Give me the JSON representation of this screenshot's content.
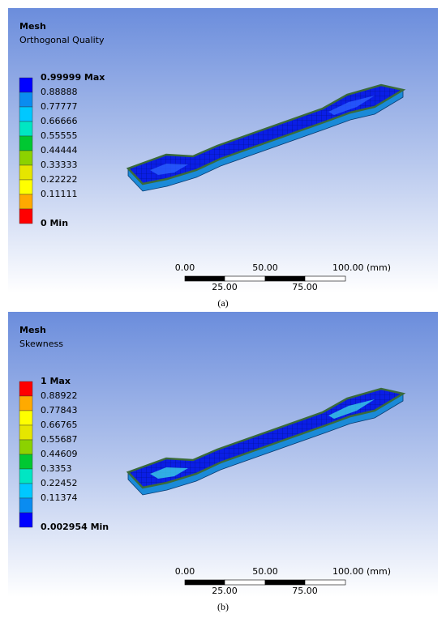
{
  "panels": [
    {
      "title": "Mesh",
      "subtitle": "Orthogonal Quality",
      "legend": [
        {
          "label": "0.99999 Max",
          "color": "#0000ff"
        },
        {
          "label": "0.88888",
          "color": "#0a8cf0"
        },
        {
          "label": "0.77777",
          "color": "#00c8ff"
        },
        {
          "label": "0.66666",
          "color": "#00e6c3"
        },
        {
          "label": "0.55555",
          "color": "#00c832"
        },
        {
          "label": "0.44444",
          "color": "#8cd200"
        },
        {
          "label": "0.33333",
          "color": "#e6e600"
        },
        {
          "label": "0.22222",
          "color": "#ffff00"
        },
        {
          "label": "0.11111",
          "color": "#ffaa00"
        },
        {
          "label": "0 Min",
          "color": "#ff0000"
        }
      ],
      "scale": {
        "top": [
          "0.00",
          "50.00",
          "100.00 (mm)"
        ],
        "bottom": [
          "25.00",
          "75.00"
        ]
      },
      "caption": "(a)"
    },
    {
      "title": "Mesh",
      "subtitle": "Skewness",
      "legend": [
        {
          "label": "1 Max",
          "color": "#ff0000"
        },
        {
          "label": "0.88922",
          "color": "#ffaa00"
        },
        {
          "label": "0.77843",
          "color": "#ffff00"
        },
        {
          "label": "0.66765",
          "color": "#e6e600"
        },
        {
          "label": "0.55687",
          "color": "#8cd200"
        },
        {
          "label": "0.44609",
          "color": "#00c832"
        },
        {
          "label": "0.3353",
          "color": "#00e6c3"
        },
        {
          "label": "0.22452",
          "color": "#00c8ff"
        },
        {
          "label": "0.11374",
          "color": "#0a8cf0"
        },
        {
          "label": "0.002954 Min",
          "color": "#0000ff"
        }
      ],
      "scale": {
        "top": [
          "0.00",
          "50.00",
          "100.00 (mm)"
        ],
        "bottom": [
          "25.00",
          "75.00"
        ]
      },
      "caption": "(b)"
    }
  ]
}
